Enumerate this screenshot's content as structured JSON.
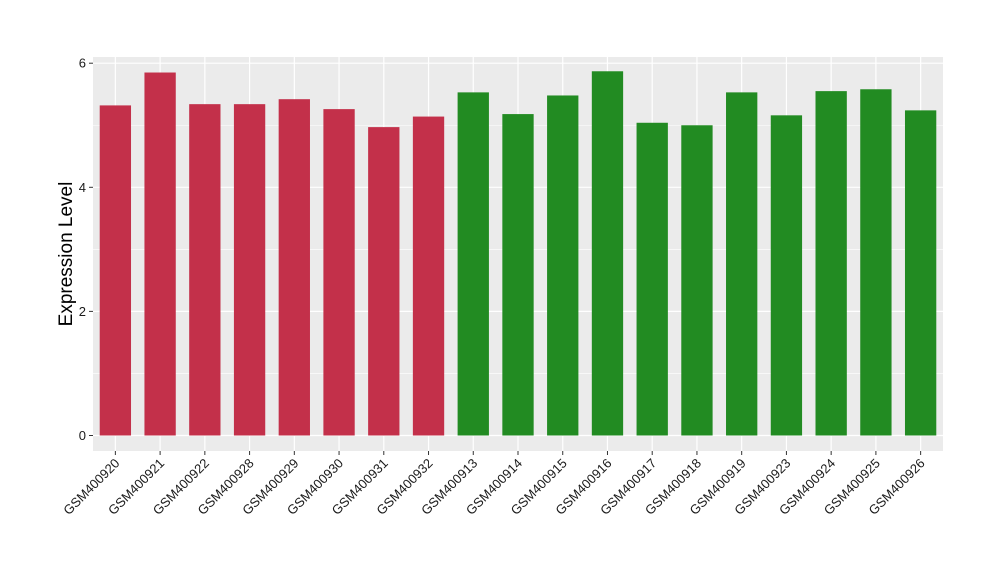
{
  "chart_data": {
    "type": "bar",
    "ylabel": "Expression Level",
    "xlabel": "",
    "ylim": [
      -0.25,
      6.1
    ],
    "yticks": [
      0,
      2,
      4,
      6
    ],
    "grid": true,
    "colors": {
      "group1": "#c3304a",
      "group2": "#228b22",
      "panel": "#ebebeb",
      "gridline": "#ffffff"
    },
    "categories": [
      "GSM400920",
      "GSM400921",
      "GSM400922",
      "GSM400928",
      "GSM400929",
      "GSM400930",
      "GSM400931",
      "GSM400932",
      "GSM400913",
      "GSM400914",
      "GSM400915",
      "GSM400916",
      "GSM400917",
      "GSM400918",
      "GSM400919",
      "GSM400923",
      "GSM400924",
      "GSM400925",
      "GSM400926"
    ],
    "values": [
      5.32,
      5.85,
      5.34,
      5.34,
      5.42,
      5.26,
      4.97,
      5.14,
      5.53,
      5.18,
      5.48,
      5.87,
      5.04,
      5.0,
      5.53,
      5.16,
      5.55,
      5.58,
      5.24
    ],
    "groups": [
      1,
      1,
      1,
      1,
      1,
      1,
      1,
      1,
      2,
      2,
      2,
      2,
      2,
      2,
      2,
      2,
      2,
      2,
      2
    ]
  }
}
